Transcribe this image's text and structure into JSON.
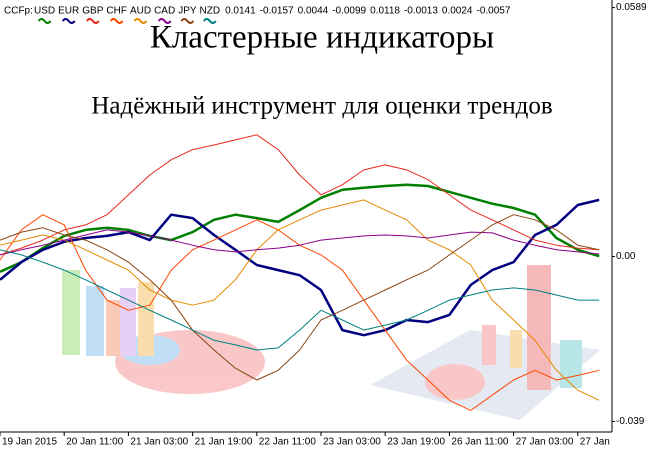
{
  "chart_data": {
    "type": "line",
    "indicator": "CCFp:",
    "title": "Кластерные индикаторы",
    "subtitle": "Надёжный инструмент для оценки трендов",
    "categories": [
      "19 Jan 2015",
      null,
      null,
      "20 Jan 11:00",
      null,
      null,
      "21 Jan 03:00",
      null,
      null,
      "21 Jan 19:00",
      null,
      null,
      "22 Jan 11:00",
      null,
      null,
      "23 Jan 03:00",
      null,
      null,
      "23 Jan 19:00",
      null,
      null,
      "26 Jan 11:00",
      null,
      null,
      "27 Jan 03:00",
      null,
      null,
      "27 Jan",
      null
    ],
    "ylim": [
      -0.0415,
      0.0607
    ],
    "yticks": [
      0.0589,
      {
        "value": 0,
        "label": "0.00"
      },
      -0.039
    ],
    "series": [
      {
        "name": "USD",
        "color": "#008000",
        "current": 0.0141,
        "values": [
          -0.0036,
          -0.0013,
          0.002,
          0.0049,
          0.0063,
          0.0068,
          0.0063,
          0.0049,
          0.0039,
          0.0058,
          0.0087,
          0.0099,
          0.0091,
          0.0082,
          0.011,
          0.0139,
          0.0158,
          0.0163,
          0.0167,
          0.017,
          0.0167,
          0.0153,
          0.0139,
          0.0125,
          0.0115,
          0.0099,
          0.0044,
          0.0016,
          0.0001
        ]
      },
      {
        "name": "EUR",
        "color": "#000080",
        "current": -0.0157,
        "values": [
          -0.0055,
          -0.0013,
          0.0016,
          0.0035,
          0.0044,
          0.0049,
          0.0058,
          0.0039,
          0.0099,
          0.0091,
          0.0051,
          0.0016,
          -0.002,
          -0.0032,
          -0.0044,
          -0.0079,
          -0.0174,
          -0.0186,
          -0.0174,
          -0.015,
          -0.0155,
          -0.0138,
          -0.0067,
          -0.0032,
          -0.0013,
          0.0051,
          0.0075,
          0.0122,
          0.0134
        ]
      },
      {
        "name": "GBP",
        "color": "#e8281e",
        "current": 0.0044,
        "values": [
          0.0004,
          0.002,
          0.0039,
          0.0063,
          0.0075,
          0.0099,
          0.0146,
          0.0193,
          0.0229,
          0.0253,
          0.0264,
          0.0276,
          0.0288,
          0.0253,
          0.0193,
          0.0146,
          0.017,
          0.0205,
          0.0217,
          0.0205,
          0.0182,
          0.0146,
          0.011,
          0.0087,
          0.0063,
          0.0039,
          0.0027,
          0.002,
          0.0016
        ]
      },
      {
        "name": "CHF",
        "color": "#ff4500",
        "current": -0.0099,
        "values": [
          -0.0008,
          0.0063,
          0.0099,
          0.0075,
          -0.0032,
          -0.0103,
          -0.0127,
          -0.0115,
          -0.0032,
          0.0016,
          0.0039,
          0.0063,
          0.0087,
          0.0063,
          0.0027,
          0.0004,
          -0.0032,
          -0.0103,
          -0.0174,
          -0.0245,
          -0.0292,
          -0.034,
          -0.0364,
          -0.0328,
          -0.0292,
          -0.0269,
          -0.0292,
          -0.0281,
          -0.0269
        ]
      },
      {
        "name": "AUD",
        "color": "#e68a00",
        "current": 0.0118,
        "values": [
          0.0027,
          0.0039,
          0.0051,
          0.0039,
          0.0016,
          -0.0008,
          -0.0032,
          -0.0079,
          -0.0103,
          -0.0115,
          -0.0103,
          -0.0055,
          0.0016,
          0.0063,
          0.0087,
          0.011,
          0.0122,
          0.0134,
          0.011,
          0.0087,
          0.0039,
          0.0016,
          -0.002,
          -0.0103,
          -0.015,
          -0.0198,
          -0.0269,
          -0.0316,
          -0.034
        ]
      },
      {
        "name": "CAD",
        "color": "#8b008b",
        "current": -0.0013,
        "values": [
          0.0004,
          0.0016,
          0.0027,
          0.0039,
          0.0051,
          0.0063,
          0.0058,
          0.0049,
          0.0039,
          0.0027,
          0.0016,
          0.0011,
          0.0016,
          0.002,
          0.0027,
          0.0039,
          0.0044,
          0.0049,
          0.0051,
          0.0049,
          0.0044,
          0.0051,
          0.0058,
          0.0056,
          0.0039,
          0.0027,
          0.0016,
          0.0011,
          0.0006
        ]
      },
      {
        "name": "JPY",
        "color": "#8b4513",
        "current": 0.0024,
        "values": [
          0.0039,
          0.0058,
          0.0068,
          0.0051,
          0.0039,
          0.0016,
          -0.0013,
          -0.0055,
          -0.0103,
          -0.0174,
          -0.0221,
          -0.0264,
          -0.0292,
          -0.0269,
          -0.0221,
          -0.015,
          -0.0127,
          -0.0103,
          -0.0079,
          -0.0055,
          -0.0032,
          0.0004,
          0.0039,
          0.0075,
          0.0099,
          0.0087,
          0.0063,
          0.0027,
          0.0016
        ]
      },
      {
        "name": "NZD",
        "color": "#008080",
        "current": -0.0057,
        "values": [
          0.0016,
          0.0004,
          -0.0013,
          -0.0032,
          -0.0055,
          -0.0079,
          -0.0103,
          -0.0127,
          -0.015,
          -0.0174,
          -0.0198,
          -0.0209,
          -0.0221,
          -0.0216,
          -0.0174,
          -0.0127,
          -0.015,
          -0.0174,
          -0.0162,
          -0.015,
          -0.0127,
          -0.0103,
          -0.0091,
          -0.0079,
          -0.0074,
          -0.0079,
          -0.0091,
          -0.0103,
          -0.0103
        ]
      }
    ]
  }
}
